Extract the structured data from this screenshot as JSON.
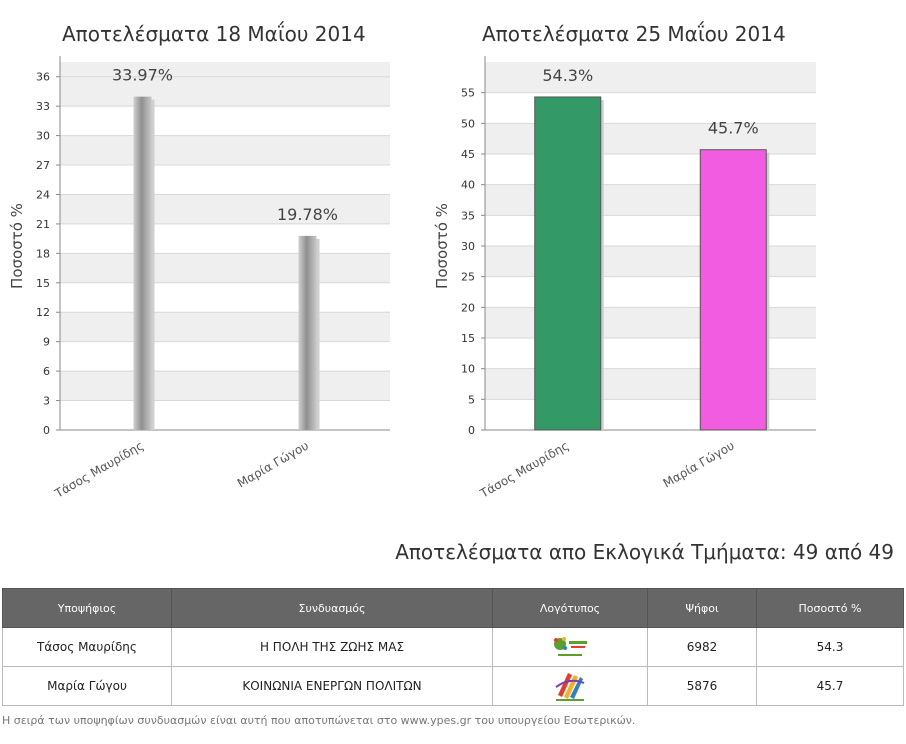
{
  "chart_data": [
    {
      "type": "bar",
      "title": "Αποτελέσματα 18 Μαΐου 2014",
      "ylabel": "Ποσοστό %",
      "categories": [
        "Τάσος Μαυρίδης",
        "Μαρία Γώγου"
      ],
      "values": [
        33.97,
        19.78
      ],
      "value_labels": [
        "33.97%",
        "19.78%"
      ],
      "ylim": [
        0,
        37.5
      ],
      "yticks": [
        0,
        3,
        6,
        9,
        12,
        15,
        18,
        21,
        24,
        27,
        30,
        33,
        36
      ],
      "colors": [
        "#a0a0a0",
        "#a0a0a0"
      ],
      "grid": true
    },
    {
      "type": "bar",
      "title": "Αποτελέσματα 25 Μαΐου 2014",
      "ylabel": "Ποσοστό %",
      "categories": [
        "Τάσος Μαυρίδης",
        "Μαρία Γώγου"
      ],
      "values": [
        54.3,
        45.7
      ],
      "value_labels": [
        "54.3%",
        "45.7%"
      ],
      "ylim": [
        0,
        60
      ],
      "yticks": [
        0,
        5,
        10,
        15,
        20,
        25,
        30,
        35,
        40,
        45,
        50,
        55
      ],
      "colors": [
        "#339966",
        "#f25ce0"
      ],
      "grid": true
    }
  ],
  "results_heading": "Αποτελέσματα απο Εκλογικά Τμήματα: 49 από 49",
  "table": {
    "headers": [
      "Υποψήφιος",
      "Συνδυασμός",
      "Λογότυπος",
      "Ψήφοι",
      "Ποσοστό %"
    ],
    "rows": [
      {
        "candidate": "Τάσος Μαυρίδης",
        "coalition": "Η ΠΟΛΗ ΤΗΣ ΖΩΗΣ ΜΑΣ",
        "logo_icon": "coalition-logo-green-icon",
        "votes": "6982",
        "percent": "54.3"
      },
      {
        "candidate": "Μαρία Γώγου",
        "coalition": "ΚΟΙΝΩΝΙΑ ΕΝΕΡΓΩΝ ΠΟΛΙΤΩΝ",
        "logo_icon": "coalition-logo-colorful-icon",
        "votes": "5876",
        "percent": "45.7"
      }
    ]
  },
  "footnote": "Η σειρά των υποψηφίων συνδυασμών είναι αυτή που αποτυπώνεται στο www.ypes.gr του υπουργείου Εσωτερικών."
}
